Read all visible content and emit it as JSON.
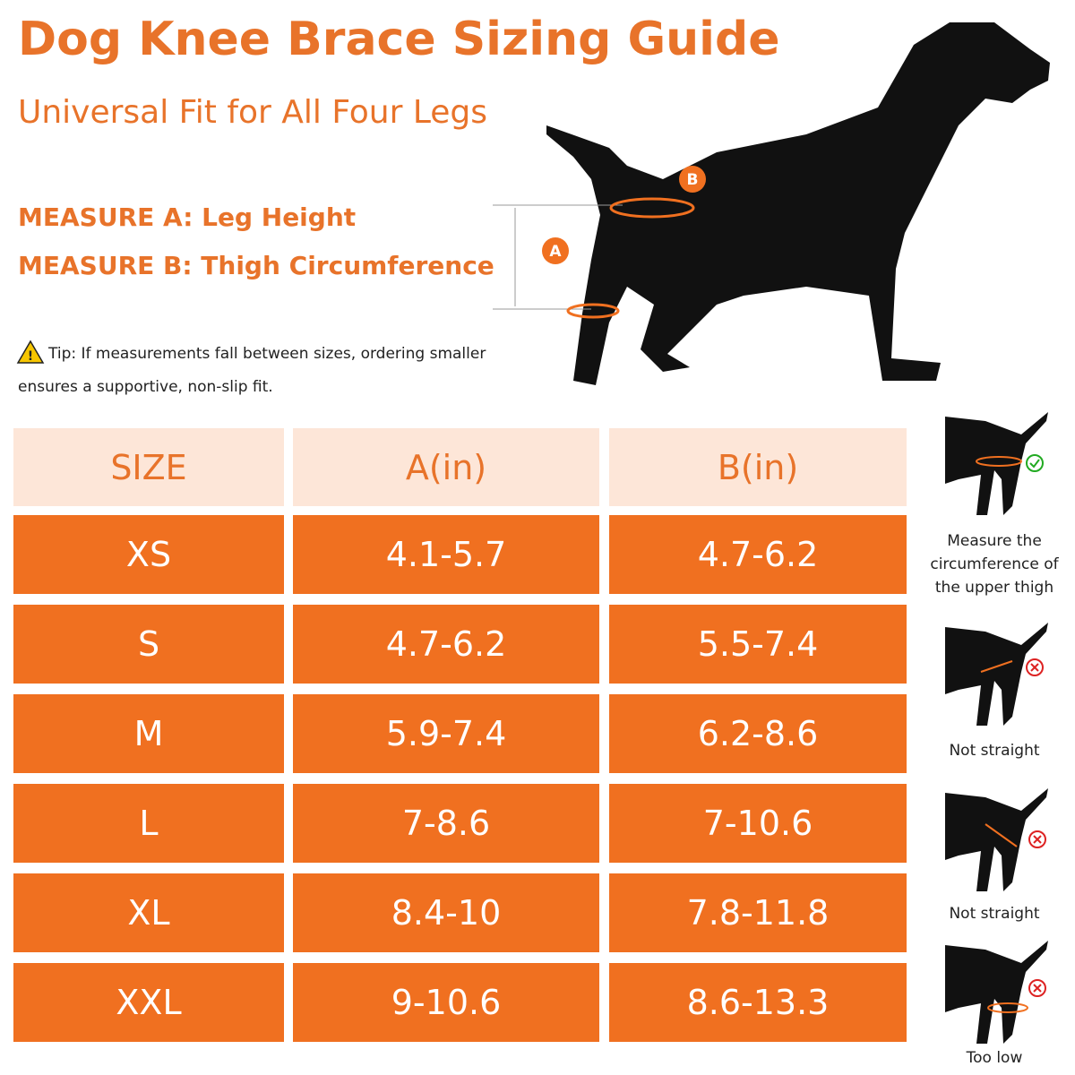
{
  "header": {
    "title": "Dog Knee Brace Sizing Guide",
    "subtitle": "Universal Fit for All Four Legs"
  },
  "measures": [
    "MEASURE A: Leg Height",
    "MEASURE B: Thigh Circumference"
  ],
  "tip": [
    "Tip: If measurements fall between sizes, ordering smaller",
    "ensures a supportive, non-slip fit."
  ],
  "callouts": {
    "a": "A",
    "b": "B"
  },
  "table": {
    "headers": [
      "SIZE",
      "A(in)",
      "B(in)"
    ],
    "rows": [
      [
        "XS",
        "4.1-5.7",
        "4.7-6.2"
      ],
      [
        "S",
        "4.7-6.2",
        "5.5-7.4"
      ],
      [
        "M",
        "5.9-7.4",
        "6.2-8.6"
      ],
      [
        "L",
        "7-8.6",
        "7-10.6"
      ],
      [
        "XL",
        "8.4-10",
        "7.8-11.8"
      ],
      [
        "XXL",
        "9-10.6",
        "8.6-13.3"
      ]
    ]
  },
  "side": [
    "Measure the circumference of the upper thigh",
    "Not straight",
    "Not straight",
    "Too low"
  ]
}
